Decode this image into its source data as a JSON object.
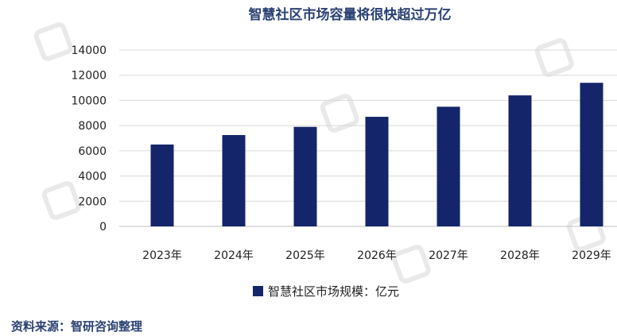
{
  "chart_data": {
    "type": "bar",
    "title": "智慧社区市场容量将很快超过万亿",
    "categories": [
      "2023年",
      "2024年",
      "2025年",
      "2026年",
      "2027年",
      "2028年",
      "2029年"
    ],
    "series": [
      {
        "name": "智慧社区市场规模：亿元",
        "values": [
          6500,
          7250,
          7900,
          8700,
          9500,
          10400,
          11400
        ]
      }
    ],
    "ylim": [
      0,
      14000
    ],
    "yticks": [
      0,
      2000,
      4000,
      6000,
      8000,
      10000,
      12000,
      14000
    ],
    "grid": true,
    "legend": "bottom"
  },
  "source": "资料来源：智研咨询整理",
  "colors": {
    "bar": "#14256a",
    "title": "#2a4173",
    "grid": "#d9d9d9"
  }
}
